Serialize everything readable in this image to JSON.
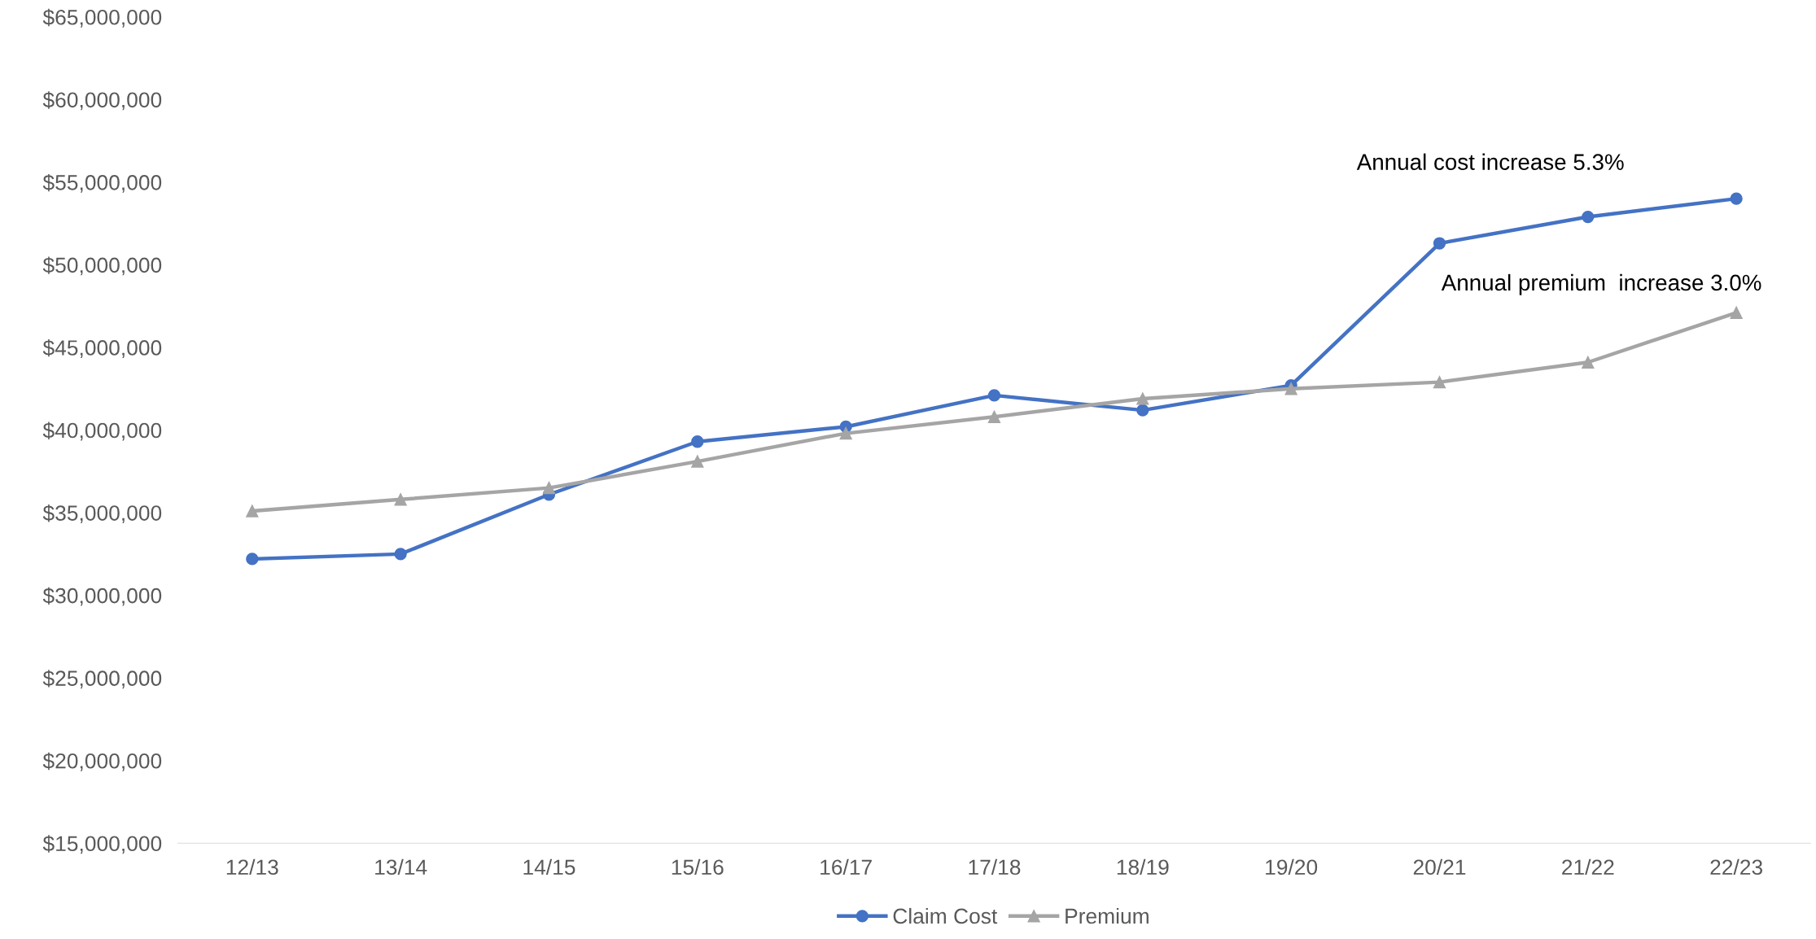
{
  "chart_data": {
    "type": "line",
    "categories": [
      "12/13",
      "13/14",
      "14/15",
      "15/16",
      "16/17",
      "17/18",
      "18/19",
      "19/20",
      "20/21",
      "21/22",
      "22/23"
    ],
    "series": [
      {
        "name": "Claim Cost",
        "color": "#4472c4",
        "marker": "circle",
        "values": [
          32200000,
          32500000,
          36100000,
          39300000,
          40200000,
          42100000,
          41200000,
          42700000,
          51300000,
          52900000,
          54000000
        ]
      },
      {
        "name": "Premium",
        "color": "#a5a5a5",
        "marker": "triangle",
        "values": [
          35100000,
          35800000,
          36500000,
          38100000,
          39800000,
          40800000,
          41900000,
          42500000,
          42900000,
          44100000,
          47100000
        ]
      }
    ],
    "ylim": [
      15000000,
      65000000
    ],
    "yticks": [
      {
        "value": 15000000,
        "label": "$15,000,000"
      },
      {
        "value": 20000000,
        "label": "$20,000,000"
      },
      {
        "value": 25000000,
        "label": "$25,000,000"
      },
      {
        "value": 30000000,
        "label": "$30,000,000"
      },
      {
        "value": 35000000,
        "label": "$35,000,000"
      },
      {
        "value": 40000000,
        "label": "$40,000,000"
      },
      {
        "value": 45000000,
        "label": "$45,000,000"
      },
      {
        "value": 50000000,
        "label": "$50,000,000"
      },
      {
        "value": 55000000,
        "label": "$55,000,000"
      },
      {
        "value": 60000000,
        "label": "$60,000,000"
      },
      {
        "value": 65000000,
        "label": "$65,000,000"
      }
    ],
    "annotations": [
      "Annual cost increase 5.3%",
      "Annual premium  increase 3.0%"
    ],
    "grid": false,
    "legend": "bottom",
    "line_style": "solid"
  }
}
